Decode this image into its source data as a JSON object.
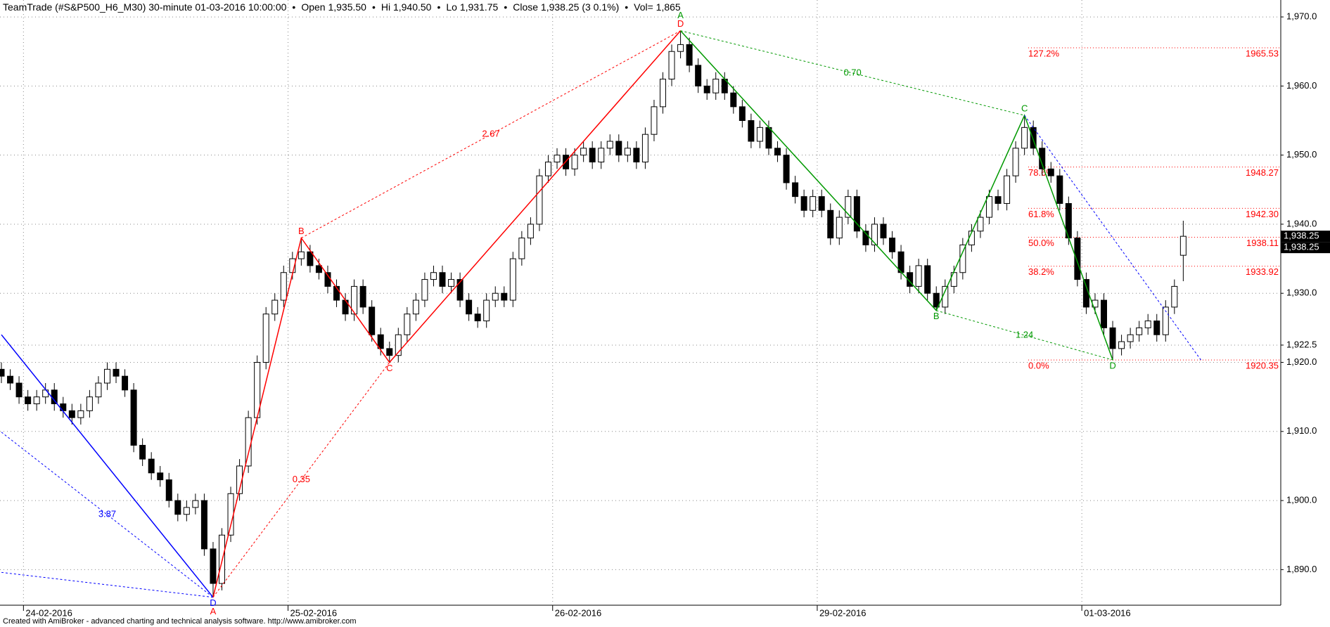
{
  "header": {
    "title": "TeamTrade (#S&P500_H6_M30) 30-minute  01-03-2016 10:00:00",
    "separator": "•",
    "open": "Open 1,935.50",
    "hi": "Hi 1,940.50",
    "lo": "Lo 1,931.75",
    "close": "Close 1,938.25 (3 0.1%)",
    "vol": "Vol= 1,865"
  },
  "footer": "Created with AmiBroker - advanced charting and technical analysis software. http://www.amibroker.com",
  "chart_data": {
    "type": "candlestick",
    "categories": [
      null,
      null,
      null,
      "24-02-2016",
      null,
      null,
      null,
      null,
      null,
      null,
      null,
      null,
      null,
      null,
      null,
      null,
      null,
      null,
      null,
      null,
      null,
      null,
      null,
      null,
      null,
      null,
      null,
      null,
      null,
      null,
      null,
      null,
      null,
      "25-02-2016",
      null,
      null,
      null,
      null,
      null,
      null,
      null,
      null,
      null,
      null,
      null,
      null,
      null,
      null,
      null,
      null,
      null,
      null,
      null,
      null,
      null,
      null,
      null,
      null,
      null,
      null,
      null,
      null,
      null,
      "26-02-2016",
      null,
      null,
      null,
      null,
      null,
      null,
      null,
      null,
      null,
      null,
      null,
      null,
      null,
      null,
      null,
      null,
      null,
      null,
      null,
      null,
      null,
      null,
      null,
      null,
      null,
      null,
      null,
      null,
      null,
      "29-02-2016",
      null,
      null,
      null,
      null,
      null,
      null,
      null,
      null,
      null,
      null,
      null,
      null,
      null,
      null,
      null,
      null,
      null,
      null,
      null,
      null,
      null,
      null,
      null,
      null,
      null,
      null,
      null,
      null,
      null,
      "01-03-2016",
      null,
      null,
      null,
      null,
      null,
      null,
      null,
      null,
      null,
      null,
      null
    ],
    "ohlc": [
      [
        1919,
        1920,
        1917,
        1918
      ],
      [
        1918,
        1919,
        1916,
        1917
      ],
      [
        1917,
        1918,
        1914,
        1915
      ],
      [
        1915,
        1916,
        1913,
        1914
      ],
      [
        1914,
        1916,
        1913,
        1915
      ],
      [
        1915,
        1917,
        1914,
        1916
      ],
      [
        1916,
        1917,
        1913,
        1914
      ],
      [
        1914,
        1915,
        1912,
        1913
      ],
      [
        1913,
        1914,
        1911,
        1912
      ],
      [
        1912,
        1914,
        1911,
        1913
      ],
      [
        1913,
        1916,
        1912,
        1915
      ],
      [
        1915,
        1918,
        1914,
        1917
      ],
      [
        1917,
        1920,
        1916,
        1919
      ],
      [
        1919,
        1920,
        1917,
        1918
      ],
      [
        1918,
        1919,
        1915,
        1916
      ],
      [
        1916,
        1917,
        1907,
        1908
      ],
      [
        1908,
        1909,
        1905,
        1906
      ],
      [
        1906,
        1907,
        1903,
        1904
      ],
      [
        1904,
        1905,
        1902,
        1903
      ],
      [
        1903,
        1904,
        1899,
        1900
      ],
      [
        1900,
        1901,
        1897,
        1898
      ],
      [
        1898,
        1900,
        1897,
        1899
      ],
      [
        1899,
        1901,
        1898,
        1900
      ],
      [
        1900,
        1901,
        1892,
        1893
      ],
      [
        1893,
        1894,
        1886,
        1888
      ],
      [
        1888,
        1896,
        1887,
        1895
      ],
      [
        1895,
        1902,
        1894,
        1901
      ],
      [
        1901,
        1906,
        1900,
        1905
      ],
      [
        1905,
        1913,
        1904,
        1912
      ],
      [
        1912,
        1921,
        1911,
        1920
      ],
      [
        1920,
        1928,
        1919,
        1927
      ],
      [
        1927,
        1930,
        1926,
        1929
      ],
      [
        1929,
        1934,
        1928,
        1933
      ],
      [
        1933,
        1936,
        1932,
        1935
      ],
      [
        1935,
        1938,
        1934,
        1936
      ],
      [
        1936,
        1937,
        1933,
        1934
      ],
      [
        1934,
        1935,
        1932,
        1933
      ],
      [
        1933,
        1934,
        1930,
        1931
      ],
      [
        1931,
        1932,
        1928,
        1929
      ],
      [
        1929,
        1930,
        1926,
        1927
      ],
      [
        1927,
        1932,
        1926,
        1931
      ],
      [
        1931,
        1932,
        1927,
        1928
      ],
      [
        1928,
        1929,
        1923,
        1924
      ],
      [
        1924,
        1925,
        1921,
        1922
      ],
      [
        1922,
        1923,
        1920,
        1921
      ],
      [
        1921,
        1925,
        1920,
        1924
      ],
      [
        1924,
        1928,
        1923,
        1927
      ],
      [
        1927,
        1930,
        1926,
        1929
      ],
      [
        1929,
        1933,
        1928,
        1932
      ],
      [
        1932,
        1934,
        1931,
        1933
      ],
      [
        1933,
        1934,
        1930,
        1931
      ],
      [
        1931,
        1933,
        1930,
        1932
      ],
      [
        1932,
        1933,
        1928,
        1929
      ],
      [
        1929,
        1930,
        1926,
        1927
      ],
      [
        1927,
        1928,
        1925,
        1926
      ],
      [
        1926,
        1930,
        1925,
        1929
      ],
      [
        1929,
        1931,
        1928,
        1930
      ],
      [
        1930,
        1931,
        1928,
        1929
      ],
      [
        1929,
        1936,
        1928,
        1935
      ],
      [
        1935,
        1939,
        1934,
        1938
      ],
      [
        1938,
        1941,
        1937,
        1940
      ],
      [
        1940,
        1948,
        1939,
        1947
      ],
      [
        1947,
        1950,
        1946,
        1949
      ],
      [
        1949,
        1951,
        1948,
        1950
      ],
      [
        1950,
        1951,
        1947,
        1948
      ],
      [
        1948,
        1951,
        1947,
        1950
      ],
      [
        1950,
        1952,
        1949,
        1951
      ],
      [
        1951,
        1952,
        1948,
        1949
      ],
      [
        1949,
        1952,
        1948,
        1951
      ],
      [
        1951,
        1953,
        1950,
        1952
      ],
      [
        1952,
        1953,
        1949,
        1950
      ],
      [
        1950,
        1952,
        1949,
        1951
      ],
      [
        1951,
        1952,
        1948,
        1949
      ],
      [
        1949,
        1954,
        1948,
        1953
      ],
      [
        1953,
        1958,
        1952,
        1957
      ],
      [
        1957,
        1962,
        1956,
        1961
      ],
      [
        1961,
        1966,
        1960,
        1965
      ],
      [
        1965,
        1968,
        1964,
        1966
      ],
      [
        1966,
        1967,
        1962,
        1963
      ],
      [
        1963,
        1964,
        1959,
        1960
      ],
      [
        1960,
        1961,
        1958,
        1959
      ],
      [
        1959,
        1962,
        1958,
        1961
      ],
      [
        1961,
        1962,
        1958,
        1959
      ],
      [
        1959,
        1960,
        1956,
        1957
      ],
      [
        1957,
        1958,
        1954,
        1955
      ],
      [
        1955,
        1956,
        1951,
        1952
      ],
      [
        1952,
        1955,
        1951,
        1954
      ],
      [
        1954,
        1955,
        1950,
        1951
      ],
      [
        1951,
        1952,
        1949,
        1950
      ],
      [
        1950,
        1951,
        1945,
        1946
      ],
      [
        1946,
        1947,
        1943,
        1944
      ],
      [
        1944,
        1945,
        1941,
        1942
      ],
      [
        1942,
        1945,
        1941,
        1944
      ],
      [
        1944,
        1945,
        1941,
        1942
      ],
      [
        1942,
        1943,
        1937,
        1938
      ],
      [
        1938,
        1942,
        1937,
        1941
      ],
      [
        1941,
        1945,
        1940,
        1944
      ],
      [
        1944,
        1945,
        1938,
        1939
      ],
      [
        1939,
        1940,
        1936,
        1937
      ],
      [
        1937,
        1941,
        1936,
        1940
      ],
      [
        1940,
        1941,
        1937,
        1938
      ],
      [
        1938,
        1939,
        1935,
        1936
      ],
      [
        1936,
        1937,
        1932,
        1933
      ],
      [
        1933,
        1934,
        1930,
        1931
      ],
      [
        1931,
        1935,
        1930,
        1934
      ],
      [
        1934,
        1935,
        1929,
        1930
      ],
      [
        1930,
        1931,
        1927.5,
        1928
      ],
      [
        1928,
        1932,
        1927,
        1931
      ],
      [
        1931,
        1934,
        1930,
        1933
      ],
      [
        1933,
        1938,
        1932,
        1937
      ],
      [
        1937,
        1940,
        1936,
        1939
      ],
      [
        1939,
        1942,
        1938,
        1941
      ],
      [
        1941,
        1945,
        1940,
        1944
      ],
      [
        1944,
        1945,
        1942,
        1943
      ],
      [
        1943,
        1948,
        1942,
        1947
      ],
      [
        1947,
        1952,
        1946,
        1951
      ],
      [
        1951,
        1955.75,
        1950,
        1954
      ],
      [
        1954,
        1955,
        1950,
        1951
      ],
      [
        1951,
        1952,
        1947,
        1948
      ],
      [
        1948,
        1949,
        1946,
        1947
      ],
      [
        1947,
        1948,
        1942,
        1943
      ],
      [
        1943,
        1944,
        1937,
        1938
      ],
      [
        1938,
        1939,
        1931,
        1932
      ],
      [
        1932,
        1933,
        1927,
        1928
      ],
      [
        1928,
        1930,
        1927,
        1929
      ],
      [
        1929,
        1930,
        1924,
        1925
      ],
      [
        1925,
        1926,
        1920.35,
        1922
      ],
      [
        1922,
        1924,
        1921,
        1923
      ],
      [
        1923,
        1925,
        1922,
        1924
      ],
      [
        1924,
        1926,
        1923,
        1925
      ],
      [
        1925,
        1927,
        1924,
        1926
      ],
      [
        1926,
        1927,
        1923,
        1924
      ],
      [
        1924,
        1929,
        1923,
        1928
      ],
      [
        1928,
        1932,
        1927,
        1931
      ],
      [
        1935.5,
        1940.5,
        1931.75,
        1938.25
      ]
    ],
    "ylim": [
      1884.85,
      1972.45
    ],
    "yticks": [
      {
        "value": 1890,
        "label": "1,890.0"
      },
      {
        "value": 1900,
        "label": "1,900.0"
      },
      {
        "value": 1910,
        "label": "1,910.0"
      },
      {
        "value": 1920,
        "label": "1,920.0"
      },
      {
        "value": 1922.5,
        "label": "1,922.5"
      },
      {
        "value": 1930,
        "label": "1,930.0"
      },
      {
        "value": 1940,
        "label": "1,940.0"
      },
      {
        "value": 1950,
        "label": "1,950.0"
      },
      {
        "value": 1960,
        "label": "1,960.0"
      },
      {
        "value": 1970,
        "label": "1,970.0"
      }
    ],
    "grid": true,
    "up_color": "#ffffff",
    "down_color": "#000000",
    "last_price": {
      "value": 1938.25,
      "label": "1,938.25"
    },
    "patterns": [
      {
        "color": "#0000ff",
        "solid": [
          [
            [
              0,
              1924
            ],
            [
              24,
              1886
            ]
          ]
        ],
        "dashed": [
          {
            "points": [
              [
                0,
                1909.9
              ],
              [
                24,
                1886
              ]
            ],
            "ratio": "3.87"
          },
          {
            "points": [
              [
                0,
                1889.6
              ],
              [
                24,
                1886
              ]
            ]
          }
        ],
        "labels": [
          {
            "text": "D",
            "at": [
              24,
              1886
            ]
          }
        ]
      },
      {
        "color": "#ff0000",
        "solid": [
          [
            [
              24,
              1886
            ],
            [
              34,
              1938
            ],
            [
              44,
              1920
            ],
            [
              77,
              1968
            ]
          ]
        ],
        "dashed": [
          {
            "points": [
              [
                24,
                1886
              ],
              [
                44,
                1920
              ]
            ],
            "ratio": "0.35"
          },
          {
            "points": [
              [
                34,
                1938
              ],
              [
                77,
                1968
              ]
            ],
            "ratio": "2.67"
          }
        ],
        "labels": [
          {
            "text": "A",
            "at": [
              24,
              1886
            ]
          },
          {
            "text": "B",
            "at": [
              34,
              1938
            ]
          },
          {
            "text": "C",
            "at": [
              44,
              1920
            ]
          },
          {
            "text": "D",
            "at": [
              77,
              1968
            ]
          }
        ]
      },
      {
        "color": "#009900",
        "solid": [
          [
            [
              77,
              1968
            ],
            [
              106,
              1927.5
            ],
            [
              116,
              1955.75
            ],
            [
              126,
              1920.35
            ]
          ]
        ],
        "dashed": [
          {
            "points": [
              [
                77,
                1968
              ],
              [
                116,
                1955.75
              ]
            ],
            "ratio": "0.70"
          },
          {
            "points": [
              [
                106,
                1927.5
              ],
              [
                126,
                1920.35
              ]
            ],
            "ratio": "1.24"
          }
        ],
        "labels": [
          {
            "text": "A",
            "at": [
              77,
              1968
            ]
          },
          {
            "text": "B",
            "at": [
              106,
              1927.5
            ]
          },
          {
            "text": "C",
            "at": [
              116,
              1955.75
            ]
          },
          {
            "text": "D",
            "at": [
              126,
              1920.35
            ]
          }
        ]
      },
      {
        "color": "#0000ff",
        "solid": [],
        "dashed": [
          {
            "points": [
              [
                116,
                1955.75
              ],
              [
                136,
                1920.35
              ]
            ]
          }
        ],
        "labels": []
      }
    ],
    "fib_color": "#ff0000",
    "fib_levels": [
      {
        "label": "127.2%",
        "value": 1965.53,
        "value_label": "1965.53"
      },
      {
        "label": "78.6%",
        "value": 1948.27,
        "value_label": "1948.27"
      },
      {
        "label": "61.8%",
        "value": 1942.3,
        "value_label": "1942.30"
      },
      {
        "label": "50.0%",
        "value": 1938.11,
        "value_label": "1938.11"
      },
      {
        "label": "38.2%",
        "value": 1933.92,
        "value_label": "1933.92"
      },
      {
        "label": "0.0%",
        "value": 1920.35,
        "value_label": "1920.35"
      }
    ]
  }
}
